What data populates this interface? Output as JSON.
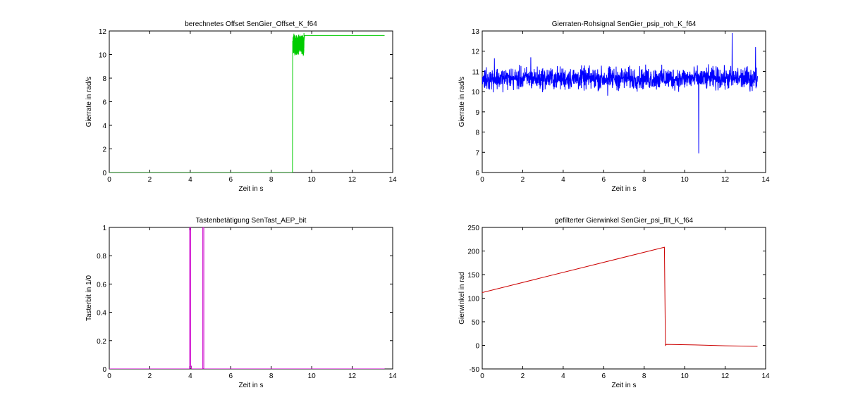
{
  "chart_data": [
    {
      "type": "line",
      "title": "berechnetes Offset SenGier_Offset_K_f64",
      "xlabel": "Zeit in s",
      "ylabel": "Gierrate in rad/s",
      "xlim": [
        0,
        14
      ],
      "ylim": [
        0,
        12
      ],
      "xticks": [
        0,
        2,
        4,
        6,
        8,
        10,
        12,
        14
      ],
      "yticks": [
        0,
        2,
        4,
        6,
        8,
        10,
        12
      ],
      "grid": false,
      "series": [
        {
          "color": "#00cc00",
          "style": "noisy",
          "x": [
            0,
            9.05,
            9.06,
            9.1,
            9.3,
            9.5,
            9.6,
            9.65,
            13.6
          ],
          "y": [
            0,
            0,
            10.6,
            10.9,
            10.8,
            10.9,
            10.7,
            11.62,
            11.62
          ],
          "noise": {
            "from": 9.06,
            "to": 9.62,
            "amplitude": 0.55
          }
        }
      ]
    },
    {
      "type": "line",
      "title": "Gierraten-Rohsignal SenGier_psip_roh_K_f64",
      "xlabel": "Zeit in s",
      "ylabel": "Gierrate in rad/s",
      "xlim": [
        0,
        14
      ],
      "ylim": [
        6,
        13
      ],
      "xticks": [
        0,
        2,
        4,
        6,
        8,
        10,
        12,
        14
      ],
      "yticks": [
        6,
        7,
        8,
        9,
        10,
        11,
        12,
        13
      ],
      "grid": false,
      "series": [
        {
          "color": "#0000ff",
          "style": "noisy",
          "x": [
            0,
            13.6
          ],
          "y": [
            10.65,
            10.65
          ],
          "noise": {
            "from": 0,
            "to": 13.6,
            "amplitude": 0.45
          },
          "spikes": [
            {
              "x": 10.7,
              "y": 6.95
            },
            {
              "x": 12.35,
              "y": 12.9
            },
            {
              "x": 13.5,
              "y": 12.2
            },
            {
              "x": 0.6,
              "y": 11.65
            },
            {
              "x": 2.4,
              "y": 11.7
            },
            {
              "x": 6.2,
              "y": 9.8
            }
          ]
        }
      ]
    },
    {
      "type": "line",
      "title": "Tastenbetätigung SenTast_AEP_bit",
      "xlabel": "Zeit in s",
      "ylabel": "Tasterbit in 1/0",
      "xlim": [
        0,
        14
      ],
      "ylim": [
        0,
        1
      ],
      "xticks": [
        0,
        2,
        4,
        6,
        8,
        10,
        12,
        14
      ],
      "yticks": [
        0,
        0.2,
        0.4,
        0.6,
        0.8,
        1
      ],
      "grid": false,
      "series": [
        {
          "color": "#cc00cc",
          "x": [
            0,
            3.97,
            3.97,
            4.02,
            4.02,
            4.06,
            4.06,
            4.62,
            4.62,
            4.67,
            4.67,
            13.6
          ],
          "y": [
            0,
            0,
            1,
            1,
            0.02,
            0.02,
            0,
            0,
            1,
            1,
            0,
            0
          ]
        }
      ]
    },
    {
      "type": "line",
      "title": "gefilterter Gierwinkel SenGier_psi_filt_K_f64",
      "xlabel": "Zeit in s",
      "ylabel": "Gierwinkel in rad",
      "xlim": [
        0,
        14
      ],
      "ylim": [
        -50,
        250
      ],
      "xticks": [
        0,
        2,
        4,
        6,
        8,
        10,
        12,
        14
      ],
      "yticks": [
        -50,
        0,
        50,
        100,
        150,
        200,
        250
      ],
      "grid": false,
      "series": [
        {
          "color": "#cc0000",
          "x": [
            0,
            9.0,
            9.05,
            9.1,
            10.5,
            12.0,
            13.6
          ],
          "y": [
            112,
            208,
            0,
            2,
            1,
            -1,
            -2
          ]
        }
      ]
    }
  ]
}
